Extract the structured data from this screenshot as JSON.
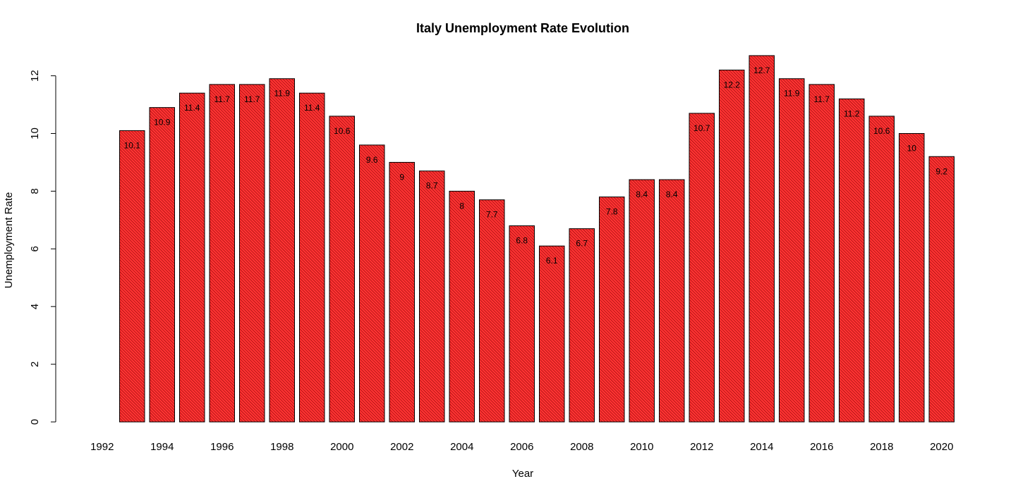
{
  "chart_data": {
    "type": "bar",
    "title": "Italy Unemployment Rate Evolution",
    "xlabel": "Year",
    "ylabel": "Unemployment Rate",
    "categories": [
      "1992",
      "1993",
      "1994",
      "1995",
      "1996",
      "1997",
      "1998",
      "1999",
      "2000",
      "2001",
      "2002",
      "2003",
      "2004",
      "2005",
      "2006",
      "2007",
      "2008",
      "2009",
      "2010",
      "2011",
      "2012",
      "2013",
      "2014",
      "2015",
      "2016",
      "2017",
      "2018",
      "2019",
      "2020"
    ],
    "values": [
      0,
      10.1,
      10.9,
      11.4,
      11.7,
      11.7,
      11.9,
      11.4,
      10.6,
      9.6,
      9,
      8.7,
      8,
      7.7,
      6.8,
      6.1,
      6.7,
      7.8,
      8.4,
      8.4,
      10.7,
      12.2,
      12.7,
      11.9,
      11.7,
      11.2,
      10.6,
      10,
      9.2
    ],
    "data_labels": [
      "",
      "10.1",
      "10.9",
      "11.4",
      "11.7",
      "11.7",
      "11.9",
      "11.4",
      "10.6",
      "9.6",
      "9",
      "8.7",
      "8",
      "7.7",
      "6.8",
      "6.1",
      "6.7",
      "7.8",
      "8.4",
      "8.4",
      "10.7",
      "12.2",
      "12.7",
      "11.9",
      "11.7",
      "11.2",
      "10.6",
      "10",
      "9.2"
    ],
    "x_tick_labels": [
      "1992",
      "1994",
      "1996",
      "1998",
      "2000",
      "2002",
      "2004",
      "2006",
      "2008",
      "2010",
      "2012",
      "2014",
      "2016",
      "2018",
      "2020"
    ],
    "y_ticks": [
      0,
      2,
      4,
      6,
      8,
      10,
      12
    ],
    "ylim": [
      0,
      12.7
    ],
    "bar_color": "#ff3333",
    "bar_fill_style": "diagonal hatching",
    "grid": false,
    "legend": "none"
  }
}
